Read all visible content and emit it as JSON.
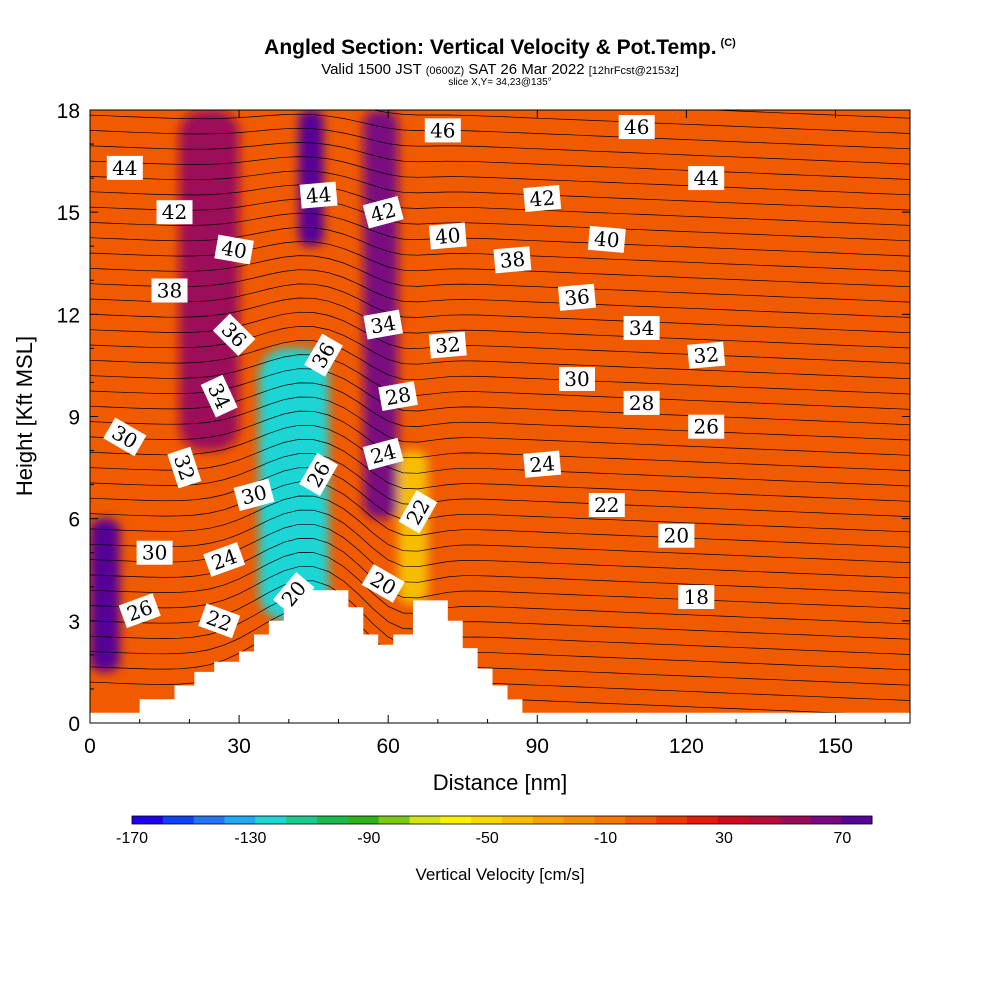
{
  "title": "Angled Section: Vertical Velocity & Pot.Temp.",
  "title_tag": "(C)",
  "subtitle_parts": [
    "Valid 1500 JST ",
    "(0600Z)",
    " SAT 26 Mar 2022 ",
    "[12hrFcst@2153z]"
  ],
  "slice_label": "slice X,Y= 34,23@135°",
  "chart_data": {
    "type": "heatmap",
    "xlabel": "Distance [nm]",
    "ylabel": "Height [Kft MSL]",
    "xlim": [
      0,
      165
    ],
    "ylim": [
      0,
      18
    ],
    "x_ticks": [
      0,
      30,
      60,
      90,
      120,
      150
    ],
    "y_ticks": [
      0,
      3,
      6,
      9,
      12,
      15,
      18
    ],
    "x_tick_labels": [
      "0",
      "30",
      "60",
      "90",
      "120",
      "150"
    ],
    "y_tick_labels": [
      "0",
      "3",
      "6",
      "9",
      "12",
      "15",
      "18"
    ],
    "colorbar": {
      "title": "Vertical Velocity [cm/s]",
      "range": [
        -170,
        80
      ],
      "tick_values": [
        -170,
        -130,
        -90,
        -50,
        -10,
        30,
        70
      ],
      "tick_labels": [
        "-170",
        "-130",
        "-90",
        "-50",
        "-10",
        "30",
        "70"
      ],
      "colors": [
        "#1f00ee",
        "#0f42f8",
        "#2474f6",
        "#22aaf4",
        "#1fd6d6",
        "#18cc90",
        "#1bba4c",
        "#2fb21a",
        "#7ac812",
        "#d4e412",
        "#f8f200",
        "#f8d800",
        "#f7bd00",
        "#f8a200",
        "#f79000",
        "#f47800",
        "#f05a00",
        "#ee3a00",
        "#e41a0a",
        "#cc0c1e",
        "#b80c38",
        "#9c0a5a",
        "#7a0880",
        "#560698"
      ]
    },
    "vertical_velocity_features": [
      {
        "x_range": [
          0,
          6
        ],
        "y_range": [
          1.5,
          6
        ],
        "value": 70
      },
      {
        "x_range": [
          18,
          30
        ],
        "y_range": [
          8,
          18
        ],
        "value": 50
      },
      {
        "x_range": [
          42,
          47
        ],
        "y_range": [
          14,
          18
        ],
        "value": 70
      },
      {
        "x_range": [
          34,
          48
        ],
        "y_range": [
          3,
          11
        ],
        "value": -120
      },
      {
        "x_range": [
          55,
          62
        ],
        "y_range": [
          6,
          18
        ],
        "value": 60
      },
      {
        "x_range": [
          62,
          68
        ],
        "y_range": [
          3.5,
          8
        ],
        "value": -40
      }
    ],
    "terrain_height_kft": [
      [
        0,
        0.3
      ],
      [
        10,
        0.3
      ],
      [
        10,
        0.7
      ],
      [
        17,
        0.7
      ],
      [
        17,
        1.1
      ],
      [
        21,
        1.1
      ],
      [
        21,
        1.5
      ],
      [
        25,
        1.5
      ],
      [
        25,
        1.8
      ],
      [
        30,
        1.8
      ],
      [
        30,
        2.1
      ],
      [
        33,
        2.1
      ],
      [
        33,
        2.6
      ],
      [
        36,
        2.6
      ],
      [
        36,
        3.0
      ],
      [
        39,
        3.0
      ],
      [
        39,
        3.4
      ],
      [
        42,
        3.4
      ],
      [
        42,
        3.9
      ],
      [
        52,
        3.9
      ],
      [
        52,
        3.4
      ],
      [
        55,
        3.4
      ],
      [
        55,
        2.6
      ],
      [
        58,
        2.6
      ],
      [
        58,
        2.3
      ],
      [
        61,
        2.3
      ],
      [
        61,
        2.6
      ],
      [
        65,
        2.6
      ],
      [
        65,
        3.6
      ],
      [
        72,
        3.6
      ],
      [
        72,
        3.0
      ],
      [
        75,
        3.0
      ],
      [
        75,
        2.2
      ],
      [
        78,
        2.2
      ],
      [
        78,
        1.6
      ],
      [
        81,
        1.6
      ],
      [
        81,
        1.1
      ],
      [
        84,
        1.1
      ],
      [
        84,
        0.7
      ],
      [
        87,
        0.7
      ],
      [
        87,
        0.3
      ],
      [
        165,
        0.3
      ]
    ],
    "potential_temperature_labels": [
      {
        "text": "44",
        "x": 7,
        "y": 16.3,
        "angle": 0
      },
      {
        "text": "42",
        "x": 17,
        "y": 15.0,
        "angle": 0
      },
      {
        "text": "40",
        "x": 29,
        "y": 13.9,
        "angle": 10
      },
      {
        "text": "38",
        "x": 16,
        "y": 12.7,
        "angle": 0
      },
      {
        "text": "36",
        "x": 29,
        "y": 11.4,
        "angle": 45
      },
      {
        "text": "34",
        "x": 26,
        "y": 9.6,
        "angle": 65
      },
      {
        "text": "32",
        "x": 19,
        "y": 7.5,
        "angle": 72
      },
      {
        "text": "30",
        "x": 7,
        "y": 8.4,
        "angle": 30
      },
      {
        "text": "30",
        "x": 33,
        "y": 6.7,
        "angle": -15
      },
      {
        "text": "30",
        "x": 13,
        "y": 5.0,
        "angle": 0
      },
      {
        "text": "26",
        "x": 10,
        "y": 3.3,
        "angle": -20
      },
      {
        "text": "24",
        "x": 27,
        "y": 4.8,
        "angle": -20
      },
      {
        "text": "22",
        "x": 26,
        "y": 3.0,
        "angle": 20
      },
      {
        "text": "20",
        "x": 41,
        "y": 3.8,
        "angle": -50
      },
      {
        "text": "26",
        "x": 46,
        "y": 7.3,
        "angle": -60
      },
      {
        "text": "36",
        "x": 47,
        "y": 10.8,
        "angle": -60
      },
      {
        "text": "44",
        "x": 46,
        "y": 15.5,
        "angle": -5
      },
      {
        "text": "42",
        "x": 59,
        "y": 15.0,
        "angle": -15
      },
      {
        "text": "34",
        "x": 59,
        "y": 11.7,
        "angle": -10
      },
      {
        "text": "28",
        "x": 62,
        "y": 9.6,
        "angle": -10
      },
      {
        "text": "24",
        "x": 59,
        "y": 7.9,
        "angle": -15
      },
      {
        "text": "22",
        "x": 66,
        "y": 6.2,
        "angle": -60
      },
      {
        "text": "20",
        "x": 59,
        "y": 4.1,
        "angle": 30
      },
      {
        "text": "46",
        "x": 71,
        "y": 17.4,
        "angle": 0
      },
      {
        "text": "40",
        "x": 72,
        "y": 14.3,
        "angle": -5
      },
      {
        "text": "32",
        "x": 72,
        "y": 11.1,
        "angle": -5
      },
      {
        "text": "42",
        "x": 91,
        "y": 15.4,
        "angle": -5
      },
      {
        "text": "38",
        "x": 85,
        "y": 13.6,
        "angle": -5
      },
      {
        "text": "36",
        "x": 98,
        "y": 12.5,
        "angle": -5
      },
      {
        "text": "30",
        "x": 98,
        "y": 10.1,
        "angle": 0
      },
      {
        "text": "24",
        "x": 91,
        "y": 7.6,
        "angle": -5
      },
      {
        "text": "22",
        "x": 104,
        "y": 6.4,
        "angle": 0
      },
      {
        "text": "46",
        "x": 110,
        "y": 17.5,
        "angle": 0
      },
      {
        "text": "40",
        "x": 104,
        "y": 14.2,
        "angle": 5
      },
      {
        "text": "34",
        "x": 111,
        "y": 11.6,
        "angle": 0
      },
      {
        "text": "28",
        "x": 111,
        "y": 9.4,
        "angle": 0
      },
      {
        "text": "44",
        "x": 124,
        "y": 16.0,
        "angle": 0
      },
      {
        "text": "32",
        "x": 124,
        "y": 10.8,
        "angle": -5
      },
      {
        "text": "26",
        "x": 124,
        "y": 8.7,
        "angle": 0
      },
      {
        "text": "20",
        "x": 118,
        "y": 5.5,
        "angle": 0
      },
      {
        "text": "18",
        "x": 122,
        "y": 3.7,
        "angle": 0
      }
    ]
  }
}
